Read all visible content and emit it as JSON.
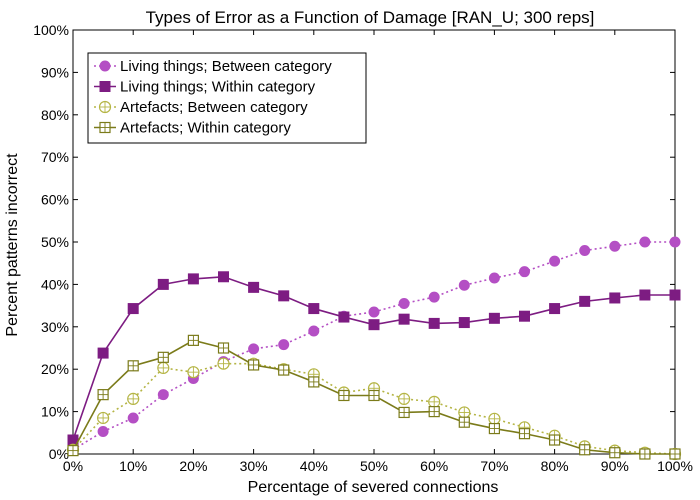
{
  "chart_data": {
    "type": "line",
    "title": "Types of Error as a Function of Damage [RAN_U; 300 reps]",
    "xlabel": "Percentage of severed connections",
    "ylabel": "Percent patterns incorrect",
    "xlim": [
      0,
      100
    ],
    "ylim": [
      0,
      100
    ],
    "xticks": [
      "0%",
      "10%",
      "20%",
      "30%",
      "40%",
      "50%",
      "60%",
      "70%",
      "80%",
      "90%",
      "100%"
    ],
    "yticks": [
      "0%",
      "10%",
      "20%",
      "30%",
      "40%",
      "50%",
      "60%",
      "70%",
      "80%",
      "90%",
      "100%"
    ],
    "x": [
      0,
      5,
      10,
      15,
      20,
      25,
      30,
      35,
      40,
      45,
      50,
      55,
      60,
      65,
      70,
      75,
      80,
      85,
      90,
      95,
      100
    ],
    "legend_position": "top-left",
    "grid": false,
    "series": [
      {
        "name": "Living things; Between category",
        "color": "#b44fc4",
        "marker": "filled-circle",
        "line": "dotted",
        "values": [
          1.0,
          5.3,
          8.5,
          14.0,
          17.8,
          21.8,
          24.8,
          25.8,
          29.0,
          32.5,
          33.5,
          35.5,
          37.0,
          39.8,
          41.5,
          43.0,
          45.5,
          48.0,
          49.0,
          50.0,
          50.0
        ]
      },
      {
        "name": "Living things; Within category",
        "color": "#7d1c82",
        "marker": "filled-square",
        "line": "solid",
        "values": [
          3.3,
          23.8,
          34.3,
          40.0,
          41.3,
          41.8,
          39.3,
          37.3,
          34.3,
          32.3,
          30.5,
          31.8,
          30.8,
          31.0,
          32.0,
          32.5,
          34.3,
          36.0,
          36.8,
          37.5,
          37.5
        ]
      },
      {
        "name": "Artefacts; Between category",
        "color": "#b5b545",
        "marker": "open-circle",
        "line": "dotted",
        "values": [
          1.0,
          8.5,
          13.0,
          20.3,
          19.3,
          21.3,
          21.3,
          20.0,
          18.8,
          14.5,
          15.5,
          13.0,
          12.3,
          9.8,
          8.3,
          6.3,
          4.3,
          1.8,
          0.8,
          0.3,
          0.0
        ]
      },
      {
        "name": "Artefacts; Within category",
        "color": "#7b7b1a",
        "marker": "open-square",
        "line": "solid",
        "values": [
          0.8,
          14.0,
          20.8,
          22.8,
          26.8,
          25.0,
          21.0,
          19.8,
          17.0,
          13.8,
          13.8,
          9.8,
          10.0,
          7.5,
          6.0,
          4.8,
          3.3,
          1.0,
          0.3,
          0.0,
          0.0
        ]
      }
    ]
  }
}
